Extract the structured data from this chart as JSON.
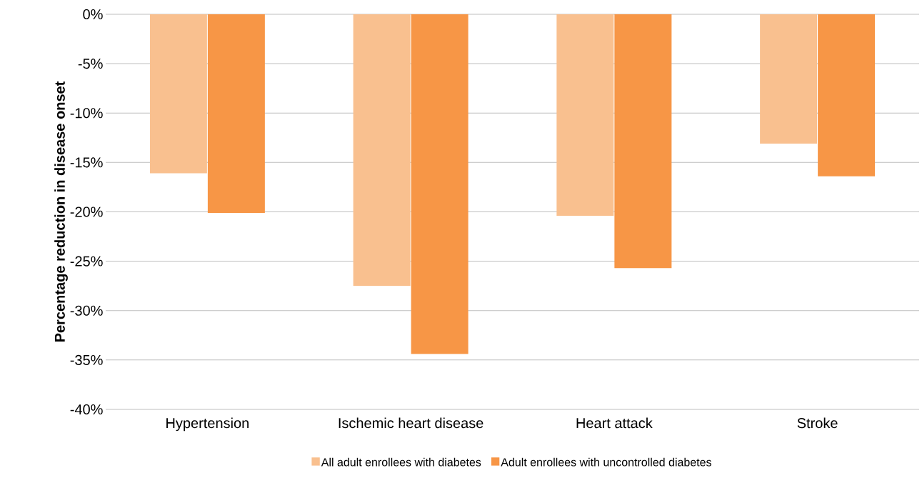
{
  "chart_data": {
    "type": "bar",
    "ylabel": "Percentage reduction in disease onset",
    "categories": [
      "Hypertension",
      "Ischemic heart disease",
      "Heart attack",
      "Stroke"
    ],
    "series": [
      {
        "name": "All adult enrollees with diabetes",
        "color": "#f9c08f",
        "values": [
          -16.1,
          -27.5,
          -20.4,
          -13.1
        ]
      },
      {
        "name": "Adult enrollees with uncontrolled diabetes",
        "color": "#f79646",
        "values": [
          -20.1,
          -34.4,
          -25.7,
          -16.4
        ]
      }
    ],
    "ylim": [
      -40,
      0
    ],
    "yticks": [
      {
        "value": -40,
        "label": "-40%"
      },
      {
        "value": -35,
        "label": "-35%"
      },
      {
        "value": -30,
        "label": "-30%"
      },
      {
        "value": -25,
        "label": "-25%"
      },
      {
        "value": -20,
        "label": "-20%"
      },
      {
        "value": -15,
        "label": "-15%"
      },
      {
        "value": -10,
        "label": "-10%"
      },
      {
        "value": -5,
        "label": "-5%"
      },
      {
        "value": 0,
        "label": "0%"
      }
    ],
    "grid": "y",
    "legend": "bottom"
  }
}
